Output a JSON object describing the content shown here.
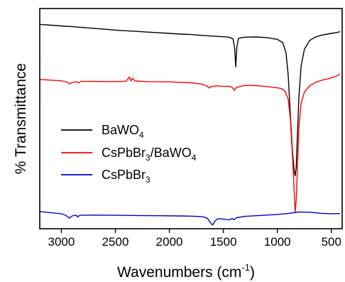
{
  "chart_data": {
    "type": "line",
    "xlabel": "Wavenumbers (cm",
    "xlabel_sup": "-1",
    "xlabel_end": ")",
    "ylabel": "% Transmittance",
    "xlim": [
      3200,
      400
    ],
    "x_reversed": true,
    "ylim": [
      0,
      100
    ],
    "y_ticks_shown": false,
    "x_ticks": [
      3000,
      2500,
      2000,
      1500,
      1000,
      500
    ],
    "x_tick_labels": [
      "3000",
      "2500",
      "2000",
      "1500",
      "1000",
      "500"
    ],
    "grid": false,
    "legend_position": "center-left",
    "series": [
      {
        "name": "BaWO",
        "name_sub": "4",
        "color": "#000000",
        "points": [
          [
            3200,
            92.8
          ],
          [
            3000,
            92.1
          ],
          [
            2900,
            91.8
          ],
          [
            2800,
            91.4
          ],
          [
            2700,
            91.0
          ],
          [
            2600,
            90.6
          ],
          [
            2500,
            90.2
          ],
          [
            2400,
            89.9
          ],
          [
            2300,
            89.6
          ],
          [
            2200,
            89.3
          ],
          [
            2100,
            89.0
          ],
          [
            2000,
            88.7
          ],
          [
            1900,
            88.4
          ],
          [
            1800,
            88.2
          ],
          [
            1700,
            87.8
          ],
          [
            1600,
            87.5
          ],
          [
            1500,
            87.2
          ],
          [
            1450,
            87.0
          ],
          [
            1410,
            86.2
          ],
          [
            1395,
            82.0
          ],
          [
            1385,
            73.5
          ],
          [
            1375,
            82.5
          ],
          [
            1360,
            86.5
          ],
          [
            1300,
            87.0
          ],
          [
            1200,
            87.1
          ],
          [
            1100,
            86.8
          ],
          [
            1000,
            86.0
          ],
          [
            950,
            84.5
          ],
          [
            920,
            80.0
          ],
          [
            900,
            70.0
          ],
          [
            880,
            52.0
          ],
          [
            860,
            35.0
          ],
          [
            845,
            26.5
          ],
          [
            835,
            24.0
          ],
          [
            825,
            28.0
          ],
          [
            815,
            42.0
          ],
          [
            800,
            60.0
          ],
          [
            780,
            74.0
          ],
          [
            750,
            81.5
          ],
          [
            700,
            85.5
          ],
          [
            650,
            87.0
          ],
          [
            600,
            87.8
          ],
          [
            500,
            88.7
          ],
          [
            450,
            89.1
          ],
          [
            420,
            89.5
          ]
        ]
      },
      {
        "name": "CsPbBr",
        "name_sub": "3",
        "name_suffix": "/BaWO",
        "name_suffix_sub": "4",
        "color": "#ff0000",
        "points": [
          [
            3200,
            67.8
          ],
          [
            3100,
            67.5
          ],
          [
            3000,
            67.2
          ],
          [
            2950,
            66.6
          ],
          [
            2920,
            65.8
          ],
          [
            2900,
            66.4
          ],
          [
            2860,
            66.8
          ],
          [
            2840,
            66.2
          ],
          [
            2820,
            66.9
          ],
          [
            2700,
            66.9
          ],
          [
            2500,
            66.8
          ],
          [
            2400,
            67.0
          ],
          [
            2370,
            68.9
          ],
          [
            2355,
            67.1
          ],
          [
            2340,
            68.4
          ],
          [
            2320,
            67.1
          ],
          [
            2200,
            66.8
          ],
          [
            2000,
            66.7
          ],
          [
            1900,
            66.5
          ],
          [
            1800,
            66.3
          ],
          [
            1750,
            66.0
          ],
          [
            1700,
            65.7
          ],
          [
            1650,
            64.7
          ],
          [
            1630,
            63.9
          ],
          [
            1610,
            64.6
          ],
          [
            1550,
            64.9
          ],
          [
            1500,
            64.6
          ],
          [
            1450,
            64.7
          ],
          [
            1420,
            64.3
          ],
          [
            1400,
            62.9
          ],
          [
            1380,
            64.1
          ],
          [
            1300,
            65.1
          ],
          [
            1200,
            65.0
          ],
          [
            1100,
            64.6
          ],
          [
            1050,
            64.3
          ],
          [
            1000,
            64.0
          ],
          [
            960,
            63.6
          ],
          [
            930,
            62.5
          ],
          [
            900,
            59.0
          ],
          [
            880,
            50.0
          ],
          [
            860,
            33.0
          ],
          [
            845,
            18.0
          ],
          [
            835,
            7.5
          ],
          [
            825,
            13.0
          ],
          [
            815,
            27.0
          ],
          [
            800,
            46.0
          ],
          [
            780,
            57.0
          ],
          [
            750,
            62.0
          ],
          [
            700,
            65.0
          ],
          [
            650,
            66.4
          ],
          [
            600,
            67.3
          ],
          [
            500,
            68.5
          ],
          [
            450,
            69.4
          ],
          [
            420,
            70.2
          ]
        ]
      },
      {
        "name": "CsPbBr",
        "name_sub": "3",
        "color": "#0000cc",
        "points": [
          [
            3200,
            7.8
          ],
          [
            3100,
            7.3
          ],
          [
            3000,
            6.8
          ],
          [
            2960,
            6.1
          ],
          [
            2925,
            4.8
          ],
          [
            2900,
            5.8
          ],
          [
            2860,
            6.2
          ],
          [
            2850,
            5.3
          ],
          [
            2830,
            6.1
          ],
          [
            2700,
            6.2
          ],
          [
            2500,
            6.1
          ],
          [
            2300,
            6.0
          ],
          [
            2100,
            5.9
          ],
          [
            1900,
            5.8
          ],
          [
            1800,
            5.7
          ],
          [
            1700,
            5.5
          ],
          [
            1650,
            4.8
          ],
          [
            1625,
            3.2
          ],
          [
            1600,
            1.6
          ],
          [
            1580,
            3.4
          ],
          [
            1550,
            4.6
          ],
          [
            1500,
            4.4
          ],
          [
            1450,
            4.0
          ],
          [
            1420,
            4.6
          ],
          [
            1400,
            4.1
          ],
          [
            1380,
            5.0
          ],
          [
            1300,
            5.6
          ],
          [
            1200,
            5.9
          ],
          [
            1100,
            6.2
          ],
          [
            1000,
            6.5
          ],
          [
            900,
            6.9
          ],
          [
            800,
            7.6
          ],
          [
            700,
            7.5
          ],
          [
            600,
            7.0
          ],
          [
            500,
            6.8
          ],
          [
            420,
            6.9
          ]
        ]
      }
    ]
  }
}
